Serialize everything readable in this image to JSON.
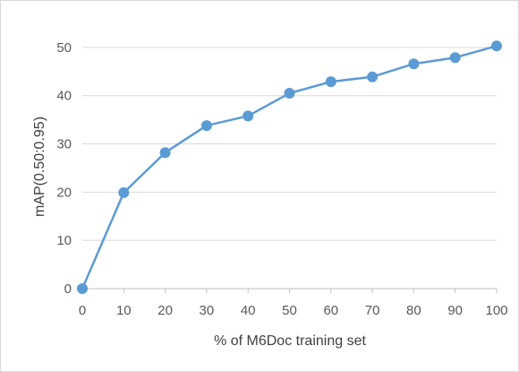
{
  "chart_data": {
    "type": "line",
    "title": "",
    "xlabel": "% of M6Doc training set",
    "ylabel": "mAP(0.50:0.95)",
    "x": [
      0,
      10,
      20,
      30,
      40,
      50,
      60,
      70,
      80,
      90,
      100
    ],
    "series": [
      {
        "values": [
          0,
          19.9,
          28.2,
          33.8,
          35.8,
          40.5,
          42.9,
          43.9,
          46.6,
          47.9,
          50.3
        ]
      }
    ],
    "xlim": [
      0,
      100
    ],
    "ylim": [
      0,
      55
    ],
    "xticks": [
      "0",
      "10",
      "20",
      "30",
      "40",
      "50",
      "60",
      "70",
      "80",
      "90",
      "100"
    ],
    "yticks": [
      "0",
      "10",
      "20",
      "30",
      "40",
      "50"
    ],
    "grid": "horizontal",
    "legend": "none",
    "colors": {
      "series": "#5b9bd5",
      "grid": "#d9d9d9",
      "axis": "#bfbfbf",
      "text": "#595959"
    }
  }
}
